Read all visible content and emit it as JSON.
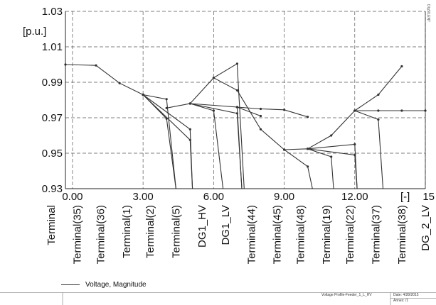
{
  "chart_data": {
    "type": "line",
    "ylabel": "[p.u.]",
    "xlabel": "[-]",
    "xlim": [
      -0.3,
      15
    ],
    "ylim": [
      0.93,
      1.03
    ],
    "y_ticks": [
      "0.93",
      "0.95",
      "0.97",
      "0.99",
      "1.01",
      "1.03"
    ],
    "x_ticks": [
      "0.00",
      "3.00",
      "6.00",
      "9.00",
      "12.00",
      "15"
    ],
    "x_tick_values": [
      0,
      3,
      6,
      9,
      12,
      15
    ],
    "grid": true,
    "categories": [
      "Terminal",
      "Terminal(35)",
      "Terminal(36)",
      "Terminal(1)",
      "Terminal(2)",
      "Terminal(5)",
      "DG1_HV",
      "DG1_LV",
      "Terminal(44)",
      "Terminal(45)",
      "Terminal(48)",
      "Terminal(19)",
      "Terminal(22)",
      "Terminal(37)",
      "Terminal(38)",
      "DG_2_LV"
    ],
    "category_positions": [
      -0.9,
      0.2,
      1.2,
      2.3,
      3.3,
      4.4,
      5.5,
      6.5,
      7.6,
      8.7,
      9.7,
      10.8,
      11.8,
      12.9,
      14.0,
      15.0
    ],
    "series": [
      {
        "name": "Voltage, Magnitude",
        "segments": [
          [
            [
              -0.3,
              1.0
            ],
            [
              1.0,
              0.9995
            ],
            [
              2.0,
              0.9895
            ],
            [
              3.0,
              0.983
            ]
          ],
          [
            [
              3.0,
              0.983
            ],
            [
              4.0,
              0.9805
            ],
            [
              4.4,
              0.93
            ]
          ],
          [
            [
              3.0,
              0.983
            ],
            [
              4.0,
              0.9695
            ],
            [
              4.4,
              0.93
            ]
          ],
          [
            [
              3.0,
              0.983
            ],
            [
              5.0,
              0.9635
            ],
            [
              5.1,
              0.93
            ]
          ],
          [
            [
              3.0,
              0.983
            ],
            [
              5.0,
              0.9575
            ],
            [
              5.1,
              0.93
            ]
          ],
          [
            [
              4.0,
              0.9755
            ],
            [
              5.0,
              0.978
            ],
            [
              6.0,
              0.974
            ],
            [
              6.4,
              0.93
            ]
          ],
          [
            [
              5.0,
              0.978
            ],
            [
              7.0,
              0.976
            ],
            [
              7.2,
              0.93
            ]
          ],
          [
            [
              5.0,
              0.978
            ],
            [
              7.0,
              0.9725
            ],
            [
              7.2,
              0.93
            ]
          ],
          [
            [
              5.0,
              0.978
            ],
            [
              6.0,
              0.9925
            ],
            [
              7.0,
              1.0005
            ],
            [
              7.3,
              0.93
            ]
          ],
          [
            [
              7.0,
              0.976
            ],
            [
              8.0,
              0.975
            ],
            [
              9.0,
              0.9745
            ],
            [
              10.0,
              0.9705
            ]
          ],
          [
            [
              7.0,
              0.976
            ],
            [
              8.0,
              0.971
            ]
          ],
          [
            [
              6.0,
              0.9925
            ],
            [
              7.0,
              0.9855
            ],
            [
              8.0,
              0.9635
            ],
            [
              9.0,
              0.952
            ],
            [
              10.0,
              0.9425
            ],
            [
              10.2,
              0.93
            ]
          ],
          [
            [
              9.0,
              0.952
            ],
            [
              10.0,
              0.9525
            ],
            [
              11.0,
              0.948
            ],
            [
              11.1,
              0.93
            ]
          ],
          [
            [
              10.0,
              0.9525
            ],
            [
              11.0,
              0.96
            ],
            [
              12.0,
              0.974
            ]
          ],
          [
            [
              10.0,
              0.9525
            ],
            [
              12.0,
              0.955
            ],
            [
              12.1,
              0.93
            ]
          ],
          [
            [
              10.0,
              0.9525
            ],
            [
              12.0,
              0.949
            ],
            [
              12.1,
              0.93
            ]
          ],
          [
            [
              12.0,
              0.974
            ],
            [
              13.0,
              0.969
            ],
            [
              13.2,
              0.93
            ]
          ],
          [
            [
              12.0,
              0.974
            ],
            [
              13.0,
              0.983
            ],
            [
              14.0,
              0.999
            ]
          ],
          [
            [
              12.0,
              0.974
            ],
            [
              13.0,
              0.974
            ],
            [
              14.0,
              0.974
            ],
            [
              15.0,
              0.974
            ]
          ]
        ]
      }
    ]
  },
  "legend": {
    "label": "Voltage, Magnitude"
  },
  "footer": {
    "title": "Voltage Profile-Feeder_1_L_HV",
    "date": "Date:  4/28/2015",
    "annex": "Annex:   /1"
  },
  "corner_text": "DIgSILENT"
}
